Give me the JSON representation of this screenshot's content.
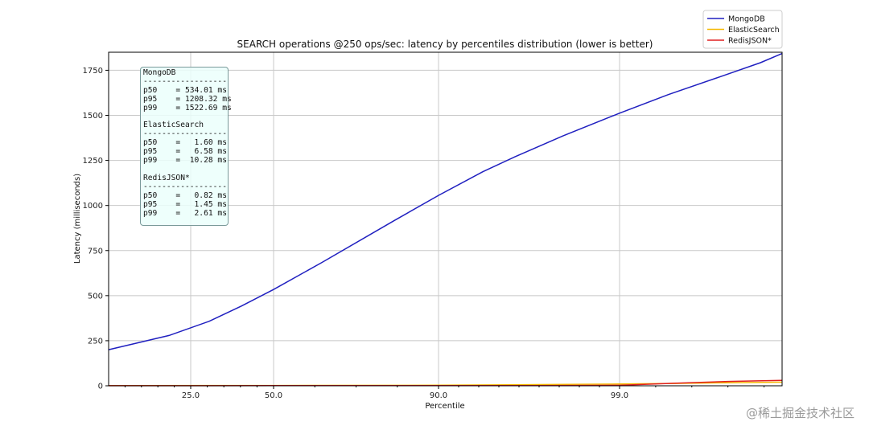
{
  "chart_data": {
    "type": "line",
    "title": "SEARCH operations @250 ops/sec: latency by percentiles distribution (lower is better)",
    "xlabel": "Percentile",
    "ylabel": "Latency (milliseconds)",
    "x_scale": "inverse-log percentile",
    "xlim": [
      0,
      99.9
    ],
    "ylim": [
      0,
      1850
    ],
    "x_ticks": [
      25.0,
      50.0,
      90.0,
      99.0
    ],
    "x_tick_labels": [
      "25.0",
      "50.0",
      "90.0",
      "99.0"
    ],
    "y_ticks": [
      0,
      250,
      500,
      750,
      1000,
      1250,
      1500,
      1750
    ],
    "y_tick_labels": [
      "0",
      "250",
      "500",
      "750",
      "1000",
      "1250",
      "1500",
      "1750"
    ],
    "grid": true,
    "legend_placement": "top-right, outside",
    "series": [
      {
        "name": "MongoDB",
        "color": "#2020c0",
        "x": [
          0,
          18.4,
          30.6,
          40.3,
          50,
          61.7,
          79.3,
          90,
          92.2,
          93.8,
          96.2,
          99,
          99.27,
          99.58,
          99.78,
          99.9
        ],
        "y": [
          200,
          279,
          358,
          442,
          534,
          684,
          917,
          1056,
          1187,
          1270,
          1387,
          1512,
          1615,
          1722,
          1792,
          1843
        ]
      },
      {
        "name": "ElasticSearch",
        "color": "#f5b800",
        "x": [
          0,
          50,
          90,
          95,
          99,
          99.3,
          99.6,
          99.9
        ],
        "y": [
          1.2,
          1.6,
          3,
          6.6,
          10,
          13,
          17,
          20
        ]
      },
      {
        "name": "RedisJSON*",
        "color": "#e02020",
        "x": [
          0,
          50,
          90,
          95,
          99,
          99.3,
          99.6,
          99.9
        ],
        "y": [
          0.6,
          0.82,
          1.2,
          1.45,
          2.6,
          14,
          24,
          30
        ]
      }
    ],
    "annotation": {
      "lines": [
        "MongoDB",
        "------------------",
        "p50    = 534.01 ms",
        "p95    = 1208.32 ms",
        "p99    = 1522.69 ms",
        "",
        "ElasticSearch",
        "------------------",
        "p50    =   1.60 ms",
        "p95    =   6.58 ms",
        "p99    =  10.28 ms",
        "",
        "RedisJSON*",
        "------------------",
        "p50    =   0.82 ms",
        "p95    =   1.45 ms",
        "p99    =   2.61 ms"
      ]
    }
  },
  "watermark": "@稀土掘金技术社区"
}
